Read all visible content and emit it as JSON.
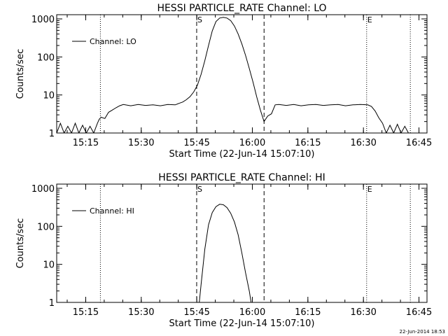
{
  "footer_timestamp": "22-Jun-2014 18:53",
  "chart_data": [
    {
      "type": "line",
      "title": "HESSI PARTICLE_RATE Channel: LO",
      "xlabel": "Start Time (22-Jun-14 15:07:10)",
      "ylabel": "Counts/sec",
      "yscale": "log",
      "ylim": [
        1,
        1000
      ],
      "xlim_minutes": [
        0,
        100
      ],
      "x_unit": "minutes after 15:07:10",
      "xticks": [
        "15:15",
        "15:30",
        "15:45",
        "16:00",
        "16:15",
        "16:30",
        "16:45"
      ],
      "yticks": [
        "1",
        "10",
        "100",
        "1000"
      ],
      "legend": {
        "label": "Channel: LO",
        "placement": "top-left"
      },
      "markers": [
        {
          "label": "S",
          "x": 37.8,
          "style": "dashed"
        },
        {
          "label": "",
          "x": 56.0,
          "style": "dashed"
        },
        {
          "label": "",
          "x": 11.8,
          "style": "dotted"
        },
        {
          "label": "E",
          "x": 83.7,
          "style": "dotted"
        },
        {
          "label": "",
          "x": 95.5,
          "style": "dotted"
        }
      ],
      "series": [
        {
          "name": "Channel: LO",
          "x": [
            0,
            1,
            2,
            3,
            4,
            5,
            6,
            7,
            8,
            9,
            10,
            11,
            11.5,
            12,
            13,
            14,
            15,
            16,
            17,
            18,
            20,
            22,
            24,
            26,
            28,
            30,
            32,
            33,
            34,
            35,
            36,
            37,
            38,
            39,
            40,
            41,
            42,
            43,
            44,
            45,
            46,
            47,
            48,
            49,
            50,
            51,
            52,
            53,
            54,
            55,
            56,
            57,
            58,
            59,
            60,
            62,
            64,
            66,
            68,
            70,
            72,
            74,
            76,
            78,
            80,
            82,
            84,
            85,
            86,
            87,
            88,
            89,
            90,
            91,
            92,
            93,
            94,
            95
          ],
          "values": [
            1,
            1.8,
            1,
            1.5,
            1,
            1.8,
            1,
            1.6,
            1,
            1.5,
            1,
            1.8,
            2.3,
            2.6,
            2.4,
            3.5,
            4.0,
            4.6,
            5.2,
            5.6,
            5.2,
            5.6,
            5.3,
            5.5,
            5.2,
            5.6,
            5.5,
            6.0,
            6.5,
            7.5,
            9.0,
            12,
            18,
            35,
            80,
            200,
            480,
            850,
            1050,
            1100,
            1050,
            900,
            650,
            400,
            220,
            110,
            50,
            22,
            9,
            4,
            2,
            2.8,
            3.2,
            5.5,
            5.6,
            5.3,
            5.6,
            5.2,
            5.5,
            5.6,
            5.3,
            5.5,
            5.6,
            5.2,
            5.5,
            5.6,
            5.5,
            5.0,
            3.8,
            2.5,
            1.8,
            1,
            1.6,
            1,
            1.7,
            1,
            1.5,
            1
          ]
        }
      ]
    },
    {
      "type": "line",
      "title": "HESSI PARTICLE_RATE Channel: HI",
      "xlabel": "Start Time (22-Jun-14 15:07:10)",
      "ylabel": "Counts/sec",
      "yscale": "log",
      "ylim": [
        1,
        1000
      ],
      "xlim_minutes": [
        0,
        100
      ],
      "x_unit": "minutes after 15:07:10",
      "xticks": [
        "15:15",
        "15:30",
        "15:45",
        "16:00",
        "16:15",
        "16:30",
        "16:45"
      ],
      "yticks": [
        "1",
        "10",
        "100",
        "1000"
      ],
      "legend": {
        "label": "Channel: HI",
        "placement": "top-left"
      },
      "markers": [
        {
          "label": "S",
          "x": 37.8,
          "style": "dashed"
        },
        {
          "label": "",
          "x": 56.0,
          "style": "dashed"
        },
        {
          "label": "",
          "x": 11.8,
          "style": "dotted"
        },
        {
          "label": "E",
          "x": 83.7,
          "style": "dotted"
        },
        {
          "label": "",
          "x": 95.5,
          "style": "dotted"
        }
      ],
      "series": [
        {
          "name": "Channel: HI",
          "x": [
            38.5,
            39,
            40,
            41,
            42,
            43,
            44,
            45,
            46,
            47,
            48,
            49,
            50,
            51,
            52,
            52.5
          ],
          "values": [
            1,
            3,
            25,
            110,
            230,
            330,
            380,
            370,
            310,
            220,
            130,
            60,
            20,
            6,
            2,
            1
          ]
        }
      ]
    }
  ]
}
